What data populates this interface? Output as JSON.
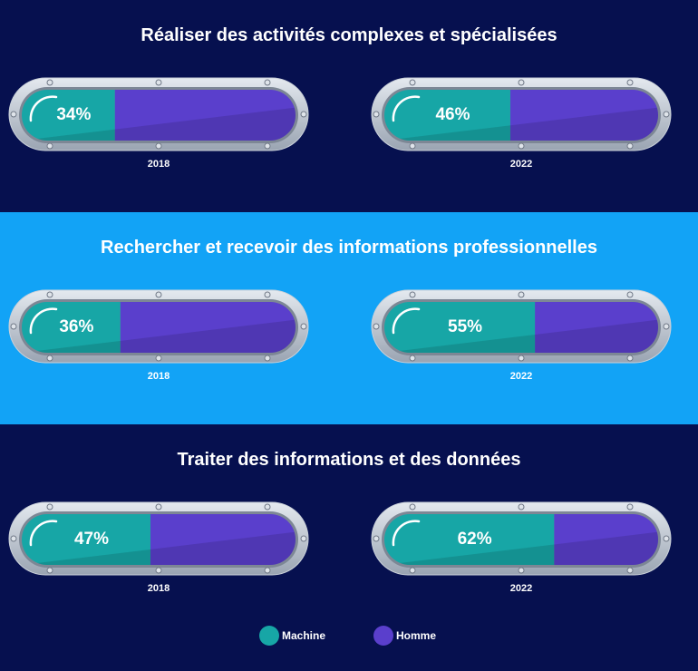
{
  "colors": {
    "machine": "#17a6a6",
    "homme": "#5a3fcc",
    "dark_band": "#06104f",
    "light_band": "#12a3f6"
  },
  "chart_data": [
    {
      "type": "bar",
      "title": "Réaliser des activités complexes et spécialisées",
      "categories": [
        "2018",
        "2022"
      ],
      "series": [
        {
          "name": "Machine",
          "values": [
            34,
            46
          ]
        },
        {
          "name": "Homme",
          "values": [
            66,
            54
          ]
        }
      ],
      "labels": [
        "34%",
        "46%"
      ],
      "ylim": [
        0,
        100
      ]
    },
    {
      "type": "bar",
      "title": "Rechercher et recevoir des informations professionnelles",
      "categories": [
        "2018",
        "2022"
      ],
      "series": [
        {
          "name": "Machine",
          "values": [
            36,
            55
          ]
        },
        {
          "name": "Homme",
          "values": [
            64,
            45
          ]
        }
      ],
      "labels": [
        "36%",
        "55%"
      ],
      "ylim": [
        0,
        100
      ]
    },
    {
      "type": "bar",
      "title": "Traiter des informations et des données",
      "categories": [
        "2018",
        "2022"
      ],
      "series": [
        {
          "name": "Machine",
          "values": [
            47,
            62
          ]
        },
        {
          "name": "Homme",
          "values": [
            53,
            38
          ]
        }
      ],
      "labels": [
        "47%",
        "62%"
      ],
      "ylim": [
        0,
        100
      ]
    }
  ],
  "legend": {
    "machine_label": "Machine",
    "homme_label": "Homme"
  }
}
